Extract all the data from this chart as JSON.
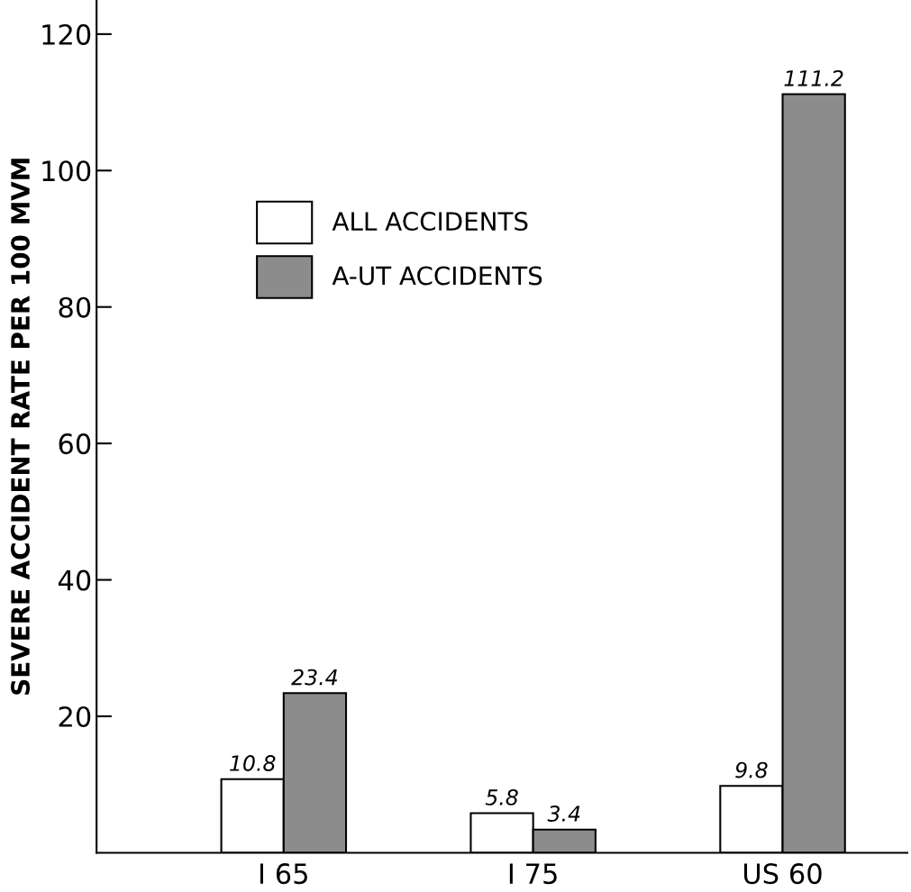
{
  "chart_data": {
    "type": "bar",
    "ylabel": "SEVERE ACCIDENT RATE PER 100 MVM",
    "categories": [
      "I 65",
      "I 75",
      "US 60"
    ],
    "series": [
      {
        "name": "ALL ACCIDENTS",
        "color": "#ffffff",
        "values": [
          10.8,
          5.8,
          9.8
        ]
      },
      {
        "name": "A-UT ACCIDENTS",
        "color": "#8c8c8c",
        "values": [
          23.4,
          3.4,
          111.2
        ]
      }
    ],
    "ylim": [
      0,
      125
    ],
    "yticks": [
      20,
      40,
      60,
      80,
      100,
      120
    ],
    "data_labels": true,
    "legend": "top left",
    "grid": false
  }
}
